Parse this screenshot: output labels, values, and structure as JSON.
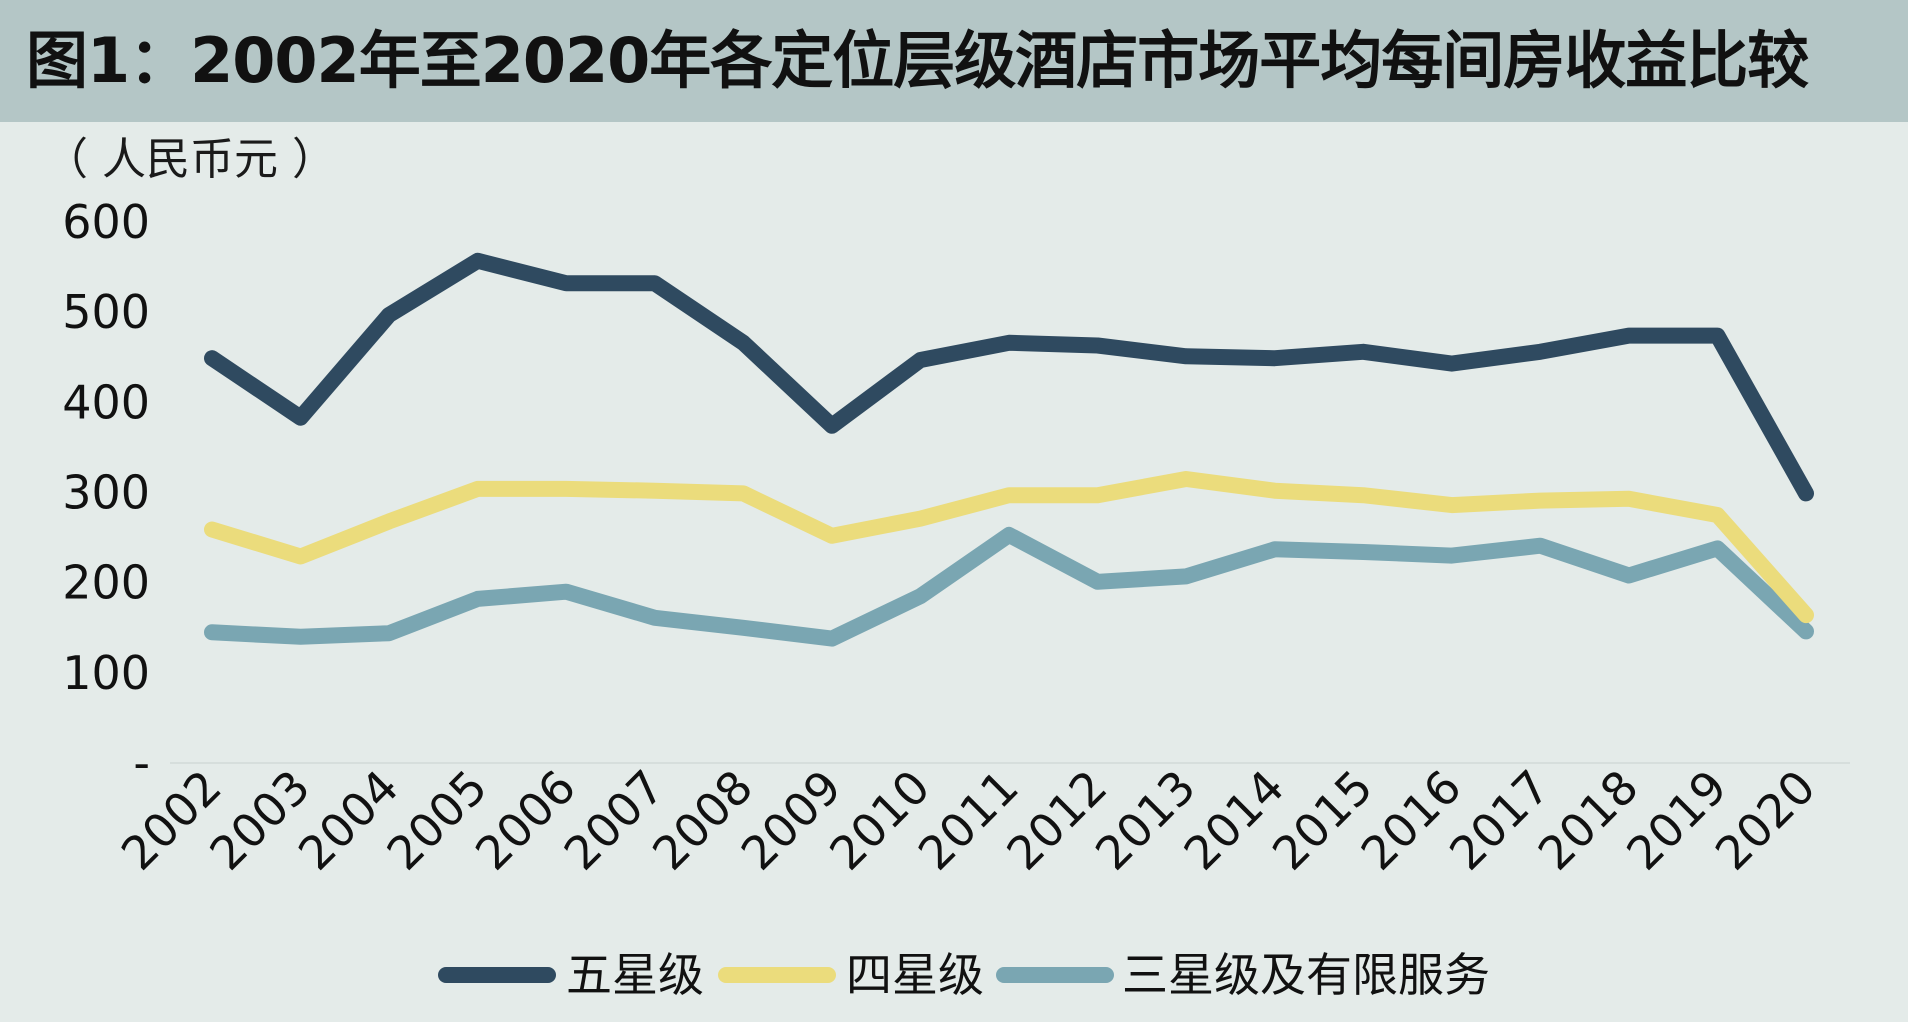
{
  "title": "图1：2002年至2020年各定位层级酒店市场平均每间房收益比较",
  "unit": "（ 人民币元 ）",
  "chart_data": {
    "type": "line",
    "title": "图1：2002年至2020年各定位层级酒店市场平均每间房收益比较",
    "ylabel": "（ 人民币元 ）",
    "xlabel": "",
    "ylim": [
      0,
      600
    ],
    "yticks": [
      0,
      100,
      200,
      300,
      400,
      500,
      600
    ],
    "ytick_labels": [
      "-",
      "100",
      "200",
      "300",
      "400",
      "500",
      "600"
    ],
    "grid": false,
    "legend_position": "bottom",
    "categories": [
      "2002",
      "2003",
      "2004",
      "2005",
      "2006",
      "2007",
      "2008",
      "2009",
      "2010",
      "2011",
      "2012",
      "2013",
      "2014",
      "2015",
      "2016",
      "2017",
      "2018",
      "2019",
      "2020"
    ],
    "series": [
      {
        "name": "五星级",
        "color": "#2f4a60",
        "values": [
          449,
          383,
          497,
          557,
          532,
          532,
          466,
          374,
          447,
          466,
          463,
          451,
          449,
          456,
          443,
          456,
          474,
          474,
          299
        ]
      },
      {
        "name": "四星级",
        "color": "#ebdc7c",
        "values": [
          259,
          229,
          268,
          304,
          304,
          302,
          299,
          252,
          271,
          297,
          297,
          315,
          302,
          297,
          286,
          291,
          293,
          275,
          164
        ]
      },
      {
        "name": "三星级及有限服务",
        "color": "#7aa6b2",
        "values": [
          145,
          140,
          144,
          182,
          190,
          161,
          150,
          138,
          185,
          253,
          201,
          207,
          237,
          234,
          230,
          241,
          208,
          238,
          146
        ]
      }
    ]
  }
}
